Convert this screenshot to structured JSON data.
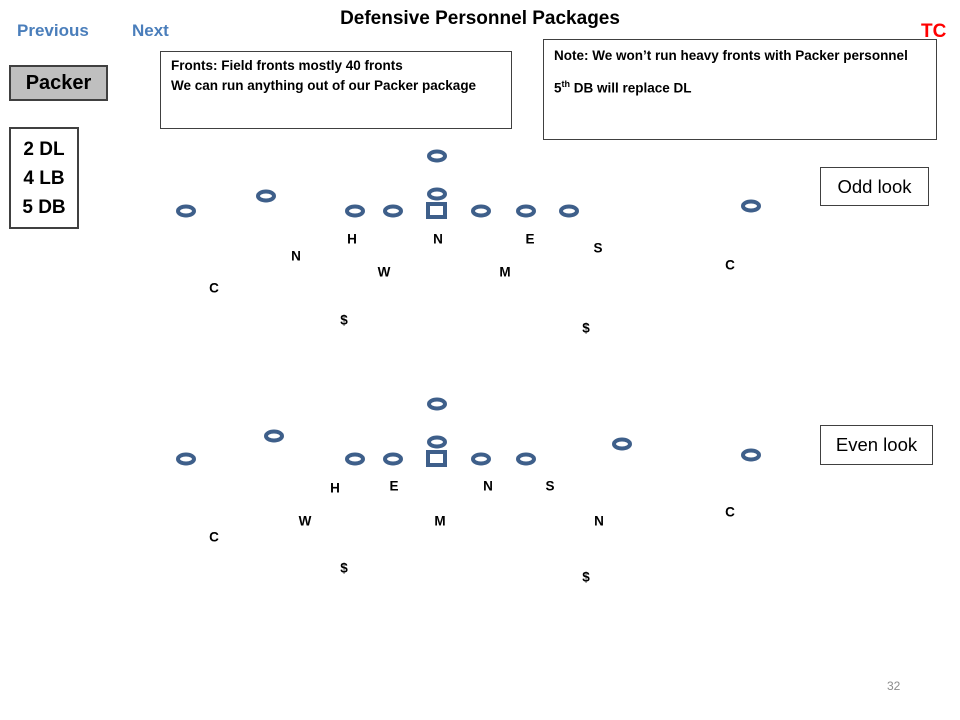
{
  "nav": {
    "previous": "Previous",
    "next": "Next",
    "tc": "TC"
  },
  "title": "Defensive Personnel Packages",
  "package_label": "Packer",
  "personnel": [
    "2 DL",
    "4 LB",
    "5 DB"
  ],
  "fronts_note": [
    "Fronts:  Field fronts mostly 40 fronts",
    "We can run anything out of our Packer package"
  ],
  "note": {
    "line1": "Note:  We won’t run heavy fronts with Packer personnel",
    "line2_prefix": "5",
    "line2_sup": "th",
    "line2_suffix": " DB will replace DL"
  },
  "odd_look": {
    "label": "Odd look",
    "defenders": [
      {
        "label": "H",
        "name": "defender-h"
      },
      {
        "label": "N",
        "name": "defender-n-nose"
      },
      {
        "label": "E",
        "name": "defender-e"
      },
      {
        "label": "S",
        "name": "defender-s"
      },
      {
        "label": "N",
        "name": "defender-n-nickel"
      },
      {
        "label": "W",
        "name": "defender-w"
      },
      {
        "label": "M",
        "name": "defender-m"
      },
      {
        "label": "C",
        "name": "defender-c-right"
      },
      {
        "label": "C",
        "name": "defender-c-left"
      },
      {
        "label": "$",
        "name": "defender-safety-left"
      },
      {
        "label": "$",
        "name": "defender-safety-right"
      }
    ]
  },
  "even_look": {
    "label": "Even look",
    "defenders": [
      {
        "label": "H",
        "name": "defender-h"
      },
      {
        "label": "E",
        "name": "defender-e"
      },
      {
        "label": "N",
        "name": "defender-n-nose"
      },
      {
        "label": "S",
        "name": "defender-s"
      },
      {
        "label": "W",
        "name": "defender-w"
      },
      {
        "label": "M",
        "name": "defender-m"
      },
      {
        "label": "N",
        "name": "defender-n-nickel"
      },
      {
        "label": "C",
        "name": "defender-c-right"
      },
      {
        "label": "C",
        "name": "defender-c-left"
      },
      {
        "label": "$",
        "name": "defender-safety-left"
      },
      {
        "label": "$",
        "name": "defender-safety-right"
      }
    ]
  },
  "page_number": "32",
  "colors": {
    "nav": "#4a7ebb",
    "tc": "#ff0000",
    "offense_stroke": "#3e5f8a",
    "package_fill": "#bfbfbf"
  }
}
